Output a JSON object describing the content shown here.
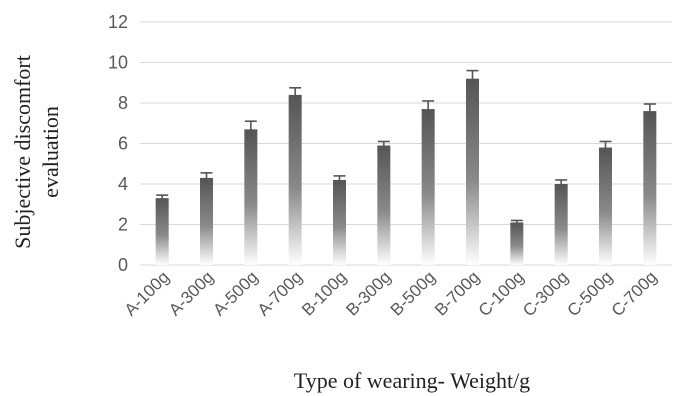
{
  "chart_data": {
    "type": "bar",
    "categories": [
      "A-100g",
      "A-300g",
      "A-500g",
      "A-700g",
      "B-100g",
      "B-300g",
      "B-500g",
      "B-700g",
      "C-100g",
      "C-300g",
      "C-500g",
      "C-700g"
    ],
    "values": [
      3.3,
      4.3,
      6.7,
      8.4,
      4.2,
      5.9,
      7.7,
      9.2,
      2.1,
      4.0,
      5.8,
      7.6
    ],
    "error": [
      0.15,
      0.25,
      0.4,
      0.35,
      0.2,
      0.2,
      0.4,
      0.4,
      0.1,
      0.2,
      0.3,
      0.35
    ],
    "title": "",
    "xlabel": "Type of wearing- Weight/g",
    "ylabel": [
      "Subjective discomfort",
      "evaluation"
    ],
    "ylim": [
      0,
      12
    ],
    "yticks": [
      0,
      2,
      4,
      6,
      8,
      10,
      12
    ],
    "grid": true,
    "legend": "none",
    "colors": {
      "bar_top": "#5a5a5a",
      "bar_bottom": "#ffffff",
      "grid": "#d9d9d9"
    }
  }
}
